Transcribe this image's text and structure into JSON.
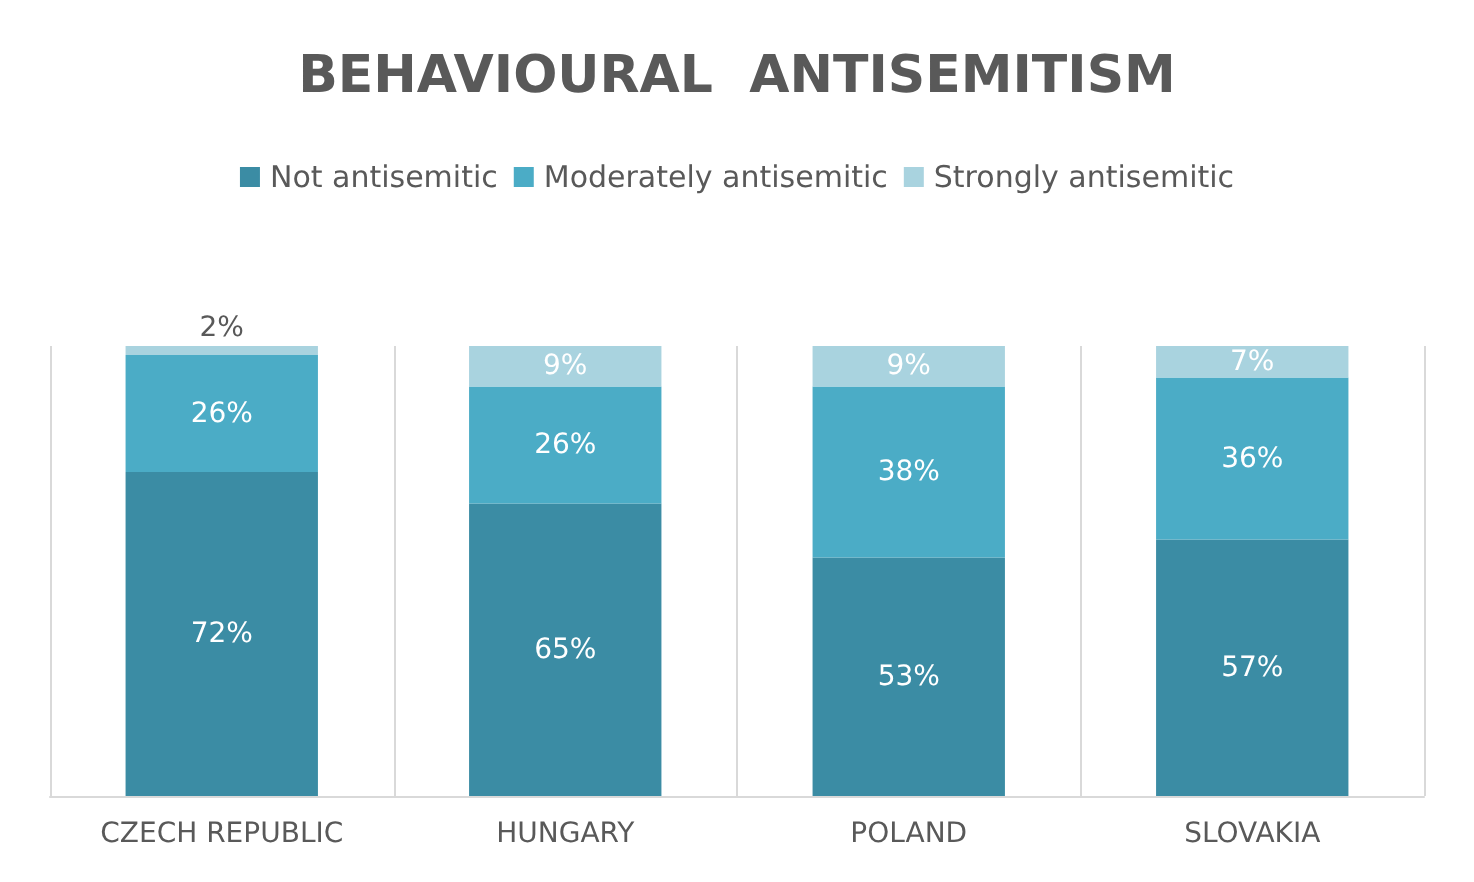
{
  "chart_data": {
    "type": "bar",
    "title": "BEHAVIOURAL  ANTISEMITISM",
    "stacked": true,
    "grid": "x",
    "legend": "top",
    "categories": [
      "CZECH REPUBLIC",
      "HUNGARY",
      "POLAND",
      "SLOVAKIA"
    ],
    "series": [
      {
        "name": "Not antisemitic",
        "color": "#3b8ca4",
        "values": [
          72,
          65,
          53,
          57
        ],
        "value_labels": [
          "72%",
          "65%",
          "53%",
          "57%"
        ]
      },
      {
        "name": "Moderately antisemitic",
        "color": "#4bacc6",
        "values": [
          26,
          26,
          38,
          36
        ],
        "value_labels": [
          "26%",
          "26%",
          "38%",
          "36%"
        ]
      },
      {
        "name": "Strongly antisemitic",
        "color": "#a9d3df",
        "values": [
          2,
          9,
          9,
          7
        ],
        "value_labels": [
          "2%",
          "9%",
          "9%",
          "7%"
        ]
      }
    ]
  }
}
